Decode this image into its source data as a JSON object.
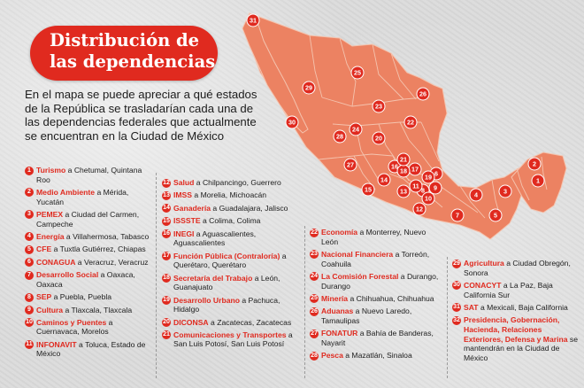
{
  "title": {
    "line1": "Distribución de",
    "line2": "las dependencias"
  },
  "intro": [
    "En el mapa se puede apreciar a qué estados",
    "de la República se trasladarían cada una de",
    "las dependencias federales que actualmente",
    "se encuentran en la Ciudad de México"
  ],
  "colors": {
    "accent": "#e02a1f",
    "land": "#ec8262",
    "border": "#f3c1ad",
    "marker": "#e02a1f"
  },
  "map_markers": [
    "1",
    "2",
    "3",
    "4",
    "5",
    "6",
    "7",
    "8",
    "9",
    "10",
    "11",
    "12",
    "13",
    "14",
    "15",
    "16",
    "17",
    "18",
    "19",
    "20",
    "21",
    "22",
    "23",
    "24",
    "25",
    "26",
    "27",
    "28",
    "29",
    "30",
    "31"
  ],
  "columns": [
    [
      {
        "num": "1",
        "dep": "Turismo",
        "loc": " a Chetumal, Quintana Roo"
      },
      {
        "num": "2",
        "dep": "Medio Ambiente",
        "loc": " a Mérida, Yucatán"
      },
      {
        "num": "3",
        "dep": "PEMEX",
        "loc": " a Ciudad del Carmen, Campeche"
      },
      {
        "num": "4",
        "dep": "Energía",
        "loc": " a Villahermosa, Tabasco"
      },
      {
        "num": "5",
        "dep": "CFE",
        "loc": " a Tuxtla Gutiérrez, Chiapas"
      },
      {
        "num": "6",
        "dep": "CONAGUA",
        "loc": " a Veracruz, Veracruz"
      },
      {
        "num": "7",
        "dep": "Desarrollo Social",
        "loc": " a Oaxaca, Oaxaca"
      },
      {
        "num": "8",
        "dep": "SEP",
        "loc": " a Puebla, Puebla"
      },
      {
        "num": "9",
        "dep": "Cultura",
        "loc": " a Tlaxcala, Tlaxcala"
      },
      {
        "num": "10",
        "dep": "Caminos y Puentes",
        "loc": " a Cuernavaca, Morelos"
      },
      {
        "num": "11",
        "dep": "INFONAVIT",
        "loc": " a Toluca, Estado de México"
      }
    ],
    [
      {
        "num": "12",
        "dep": "Salud",
        "loc": " a Chilpancingo, Guerrero"
      },
      {
        "num": "13",
        "dep": "IMSS",
        "loc": " a Morelia, Michoacán"
      },
      {
        "num": "14",
        "dep": "Ganadería",
        "loc": " a Guadalajara, Jalisco"
      },
      {
        "num": "15",
        "dep": "ISSSTE",
        "loc": " a Colima, Colima"
      },
      {
        "num": "16",
        "dep": "INEGI",
        "loc": " a Aguascalientes, Aguascalientes"
      },
      {
        "num": "17",
        "dep": "Función Pública (Contraloría)",
        "loc": " a Querétaro, Querétaro"
      },
      {
        "num": "18",
        "dep": "Secretaría del Trabajo",
        "loc": " a León, Guanajuato"
      },
      {
        "num": "19",
        "dep": "Desarrollo Urbano",
        "loc": " a Pachuca, Hidalgo"
      },
      {
        "num": "20",
        "dep": "DICONSA",
        "loc": " a Zacatecas, Zacatecas"
      },
      {
        "num": "21",
        "dep": "Comunicaciones y Transportes",
        "loc": " a San Luis Potosí, San Luis Potosí"
      }
    ],
    [
      {
        "num": "22",
        "dep": "Economía",
        "loc": " a Monterrey, Nuevo León"
      },
      {
        "num": "23",
        "dep": "Nacional Financiera",
        "loc": " a Torreón, Coahuila"
      },
      {
        "num": "24",
        "dep": "La Comisión Forestal",
        "loc": " a Durango, Durango"
      },
      {
        "num": "25",
        "dep": "Minería",
        "loc": " a Chihuahua, Chihuahua"
      },
      {
        "num": "26",
        "dep": "Aduanas",
        "loc": " a Nuevo Laredo, Tamaulipas"
      },
      {
        "num": "27",
        "dep": "FONATUR",
        "loc": " a Bahía de Banderas, Nayarit"
      },
      {
        "num": "28",
        "dep": "Pesca",
        "loc": " a Mazatlán, Sinaloa"
      }
    ],
    [
      {
        "num": "29",
        "dep": "Agricultura",
        "loc": " a Ciudad Obregón, Sonora"
      },
      {
        "num": "30",
        "dep": "CONACYT",
        "loc": " a La Paz, Baja California Sur"
      },
      {
        "num": "31",
        "dep": "SAT",
        "loc": " a Mexicali, Baja California"
      },
      {
        "num": "32",
        "dep": "Presidencia, Gobernación, Hacienda, Relaciones Exteriores, Defensa y Marina",
        "loc": " se mantendrán en la Ciudad de México"
      }
    ]
  ]
}
